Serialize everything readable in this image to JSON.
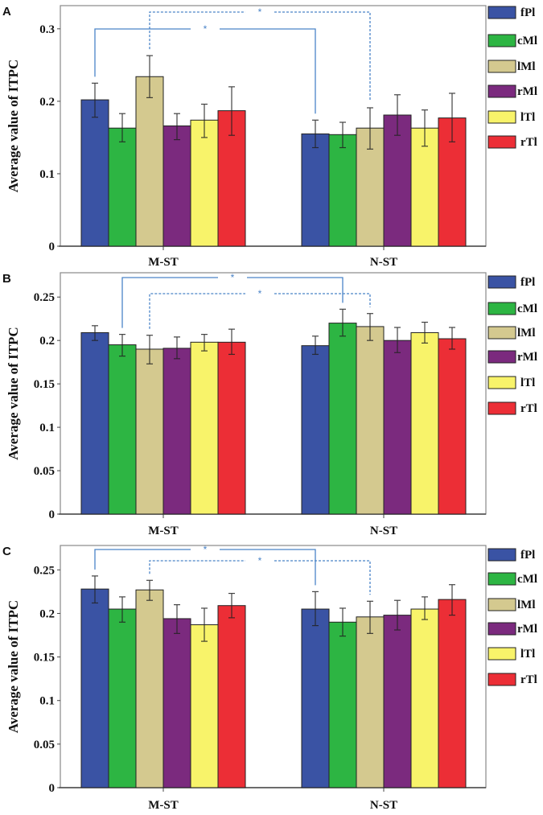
{
  "chart_data": [
    {
      "panel": "A",
      "type": "bar",
      "ylabel": "Average value of ITPC",
      "ylim": [
        0,
        0.332
      ],
      "yticks": [
        "0",
        "0.1",
        "0.2",
        "0.3"
      ],
      "ytick_values": [
        0,
        0.1,
        0.2,
        0.3
      ],
      "categories": [
        "M-ST",
        "N-ST"
      ],
      "legend_placement": "right",
      "series": [
        {
          "name": "fPl",
          "color": "#3a53a4",
          "values": [
            0.202,
            0.155
          ],
          "err_high": [
            0.225,
            0.174
          ],
          "err_low": [
            0.178,
            0.136
          ]
        },
        {
          "name": "cMl",
          "color": "#2db543",
          "values": [
            0.163,
            0.154
          ],
          "err_high": [
            0.183,
            0.171
          ],
          "err_low": [
            0.144,
            0.136
          ]
        },
        {
          "name": "lMl",
          "color": "#d4c98f",
          "values": [
            0.234,
            0.163
          ],
          "err_high": [
            0.263,
            0.191
          ],
          "err_low": [
            0.205,
            0.134
          ]
        },
        {
          "name": "rMl",
          "color": "#7b2a7e",
          "values": [
            0.166,
            0.181
          ],
          "err_high": [
            0.183,
            0.209
          ],
          "err_low": [
            0.147,
            0.153
          ]
        },
        {
          "name": "lTl",
          "color": "#f8f36a",
          "values": [
            0.174,
            0.163
          ],
          "err_high": [
            0.196,
            0.188
          ],
          "err_low": [
            0.15,
            0.138
          ]
        },
        {
          "name": "rTl",
          "color": "#ec2e36",
          "values": [
            0.187,
            0.177
          ],
          "err_high": [
            0.22,
            0.211
          ],
          "err_low": [
            0.153,
            0.144
          ]
        }
      ],
      "significance": [
        {
          "from_series": "fPl",
          "to_series": "fPl",
          "style": "solid",
          "label": "*"
        },
        {
          "from_series": "lMl",
          "to_series": "lMl",
          "style": "dashed",
          "label": "*"
        }
      ]
    },
    {
      "panel": "B",
      "type": "bar",
      "ylabel": "Average value of ITPC",
      "ylim": [
        0,
        0.278
      ],
      "yticks": [
        "0",
        "0.05",
        "0.1",
        "0.15",
        "0.2",
        "0.25"
      ],
      "ytick_values": [
        0,
        0.05,
        0.1,
        0.15,
        0.2,
        0.25
      ],
      "categories": [
        "M-ST",
        "N-ST"
      ],
      "legend_placement": "right",
      "series": [
        {
          "name": "fPl",
          "color": "#3a53a4",
          "values": [
            0.209,
            0.194
          ],
          "err_high": [
            0.217,
            0.205
          ],
          "err_low": [
            0.2,
            0.184
          ]
        },
        {
          "name": "cMl",
          "color": "#2db543",
          "values": [
            0.195,
            0.22
          ],
          "err_high": [
            0.207,
            0.236
          ],
          "err_low": [
            0.182,
            0.205
          ]
        },
        {
          "name": "lMl",
          "color": "#d4c98f",
          "values": [
            0.19,
            0.216
          ],
          "err_high": [
            0.206,
            0.231
          ],
          "err_low": [
            0.173,
            0.2
          ]
        },
        {
          "name": "rMl",
          "color": "#7b2a7e",
          "values": [
            0.191,
            0.2
          ],
          "err_high": [
            0.204,
            0.215
          ],
          "err_low": [
            0.179,
            0.186
          ]
        },
        {
          "name": "lTl",
          "color": "#f8f36a",
          "values": [
            0.198,
            0.209
          ],
          "err_high": [
            0.207,
            0.221
          ],
          "err_low": [
            0.188,
            0.197
          ]
        },
        {
          "name": "rTl",
          "color": "#ec2e36",
          "values": [
            0.198,
            0.202
          ],
          "err_high": [
            0.213,
            0.215
          ],
          "err_low": [
            0.184,
            0.19
          ]
        }
      ],
      "significance": [
        {
          "from_series": "cMl",
          "to_series": "cMl",
          "style": "solid",
          "label": "*"
        },
        {
          "from_series": "lMl",
          "to_series": "lMl",
          "style": "dashed",
          "label": "*"
        }
      ]
    },
    {
      "panel": "C",
      "type": "bar",
      "ylabel": "Average value of ITPC",
      "ylim": [
        0,
        0.278
      ],
      "yticks": [
        "0",
        "0.05",
        "0.1",
        "0.15",
        "0.2",
        "0.25"
      ],
      "ytick_values": [
        0,
        0.05,
        0.1,
        0.15,
        0.2,
        0.25
      ],
      "categories": [
        "M-ST",
        "N-ST"
      ],
      "legend_placement": "right",
      "series": [
        {
          "name": "fPl",
          "color": "#3a53a4",
          "values": [
            0.228,
            0.205
          ],
          "err_high": [
            0.243,
            0.225
          ],
          "err_low": [
            0.212,
            0.186
          ]
        },
        {
          "name": "cMl",
          "color": "#2db543",
          "values": [
            0.205,
            0.19
          ],
          "err_high": [
            0.219,
            0.206
          ],
          "err_low": [
            0.19,
            0.174
          ]
        },
        {
          "name": "lMl",
          "color": "#d4c98f",
          "values": [
            0.227,
            0.196
          ],
          "err_high": [
            0.238,
            0.214
          ],
          "err_low": [
            0.215,
            0.177
          ]
        },
        {
          "name": "rMl",
          "color": "#7b2a7e",
          "values": [
            0.194,
            0.198
          ],
          "err_high": [
            0.21,
            0.215
          ],
          "err_low": [
            0.177,
            0.181
          ]
        },
        {
          "name": "lTl",
          "color": "#f8f36a",
          "values": [
            0.187,
            0.205
          ],
          "err_high": [
            0.206,
            0.219
          ],
          "err_low": [
            0.168,
            0.193
          ]
        },
        {
          "name": "rTl",
          "color": "#ec2e36",
          "values": [
            0.209,
            0.216
          ],
          "err_high": [
            0.223,
            0.233
          ],
          "err_low": [
            0.195,
            0.198
          ]
        }
      ],
      "significance": [
        {
          "from_series": "fPl",
          "to_series": "fPl",
          "style": "solid",
          "label": "*"
        },
        {
          "from_series": "lMl",
          "to_series": "lMl",
          "style": "dashed",
          "label": "*"
        }
      ]
    }
  ],
  "bracket_color": "#4a84c8"
}
